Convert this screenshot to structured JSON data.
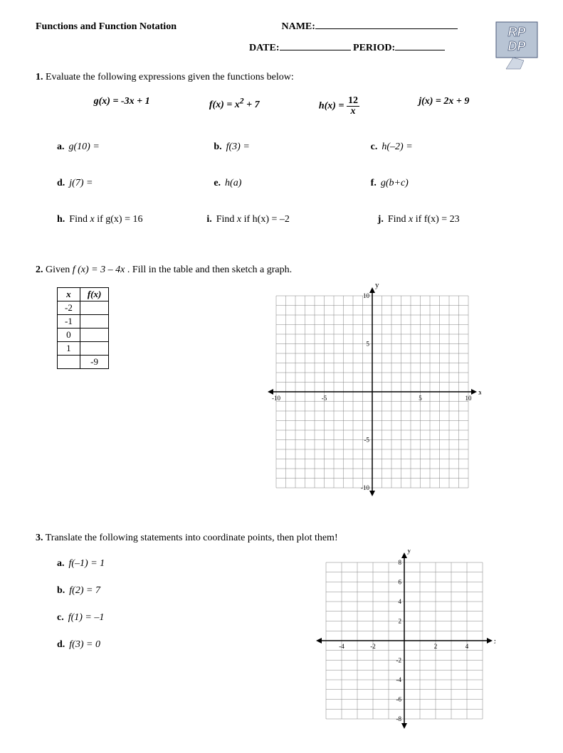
{
  "header": {
    "title": "Functions and Function Notation",
    "name_label": "NAME:",
    "date_label": "DATE:",
    "period_label": "PERIOD:",
    "name_underline_width": 200,
    "date_underline_width": 100,
    "period_underline_width": 70
  },
  "logo": {
    "text1": "RP",
    "text2": "DP",
    "bg": "#b8c4d4",
    "fg": "#ffffff",
    "outline": "#4a5a7a"
  },
  "q1": {
    "num": "1.",
    "prompt": "Evaluate the following expressions given the functions below:",
    "funcs": {
      "g": "g(x) = -3x + 1",
      "f_pre": "f(x) = x",
      "f_sup": "2",
      "f_post": " + 7",
      "h_pre": "h(x) = ",
      "h_num": "12",
      "h_den": "x",
      "j": "j(x) = 2x + 9"
    },
    "parts": {
      "a": {
        "label": "a.",
        "text": "g(10) ="
      },
      "b": {
        "label": "b.",
        "text": "f(3) ="
      },
      "c": {
        "label": "c.",
        "text": "h(–2) ="
      },
      "d": {
        "label": "d.",
        "text": "j(7) ="
      },
      "e": {
        "label": "e.",
        "text": "h(a)"
      },
      "f": {
        "label": "f.",
        "text": "g(b+c)"
      },
      "h": {
        "label": "h.",
        "pre": "Find ",
        "var": "x",
        "post": " if g(x) = 16"
      },
      "i": {
        "label": "i.",
        "pre": "Find ",
        "var": "x",
        "post": " if h(x) = –2"
      },
      "j": {
        "label": "j.",
        "pre": "Find ",
        "var": "x",
        "post": " if f(x) = 23"
      }
    }
  },
  "q2": {
    "num": "2.",
    "prompt_pre": "Given ",
    "func": "f (x) = 3 – 4x",
    "prompt_post": ". Fill in the table and then sketch a graph.",
    "table": {
      "head_x": "x",
      "head_fx": "f(x)",
      "rows": [
        {
          "x": "-2",
          "fx": ""
        },
        {
          "x": "-1",
          "fx": ""
        },
        {
          "x": "0",
          "fx": ""
        },
        {
          "x": "1",
          "fx": ""
        },
        {
          "x": "",
          "fx": "-9"
        }
      ]
    },
    "graph": {
      "size": 270,
      "xmin": -10,
      "xmax": 10,
      "ymin": -10,
      "ymax": 10,
      "major_step": 5,
      "minor_step": 1,
      "tick_labels": [
        "-10",
        "-5",
        "5",
        "10"
      ],
      "axis_labels": {
        "x": "x",
        "y": "y"
      },
      "grid_color": "#808080",
      "axis_color": "#000000",
      "bg": "#ffffff"
    }
  },
  "q3": {
    "num": "3.",
    "prompt": "Translate the following statements into coordinate points, then plot them!",
    "parts": {
      "a": {
        "label": "a.",
        "text": "f(–1) = 1"
      },
      "b": {
        "label": "b.",
        "text": "f(2) = 7"
      },
      "c": {
        "label": "c.",
        "text": "f(1) = –1"
      },
      "d": {
        "label": "d.",
        "text": "f(3) = 0"
      }
    },
    "graph": {
      "size": 220,
      "xmin": -5,
      "xmax": 5,
      "ymin": -8,
      "ymax": 8,
      "xstep": 1,
      "ystep": 1,
      "x_tick_labels": [
        "-4",
        "-2",
        "2",
        "4"
      ],
      "y_tick_labels": [
        "-8",
        "-6",
        "-4",
        "-2",
        "2",
        "4",
        "6",
        "8"
      ],
      "axis_labels": {
        "x": "x",
        "y": "y"
      },
      "grid_color": "#808080",
      "axis_color": "#000000",
      "bg": "#ffffff"
    }
  }
}
